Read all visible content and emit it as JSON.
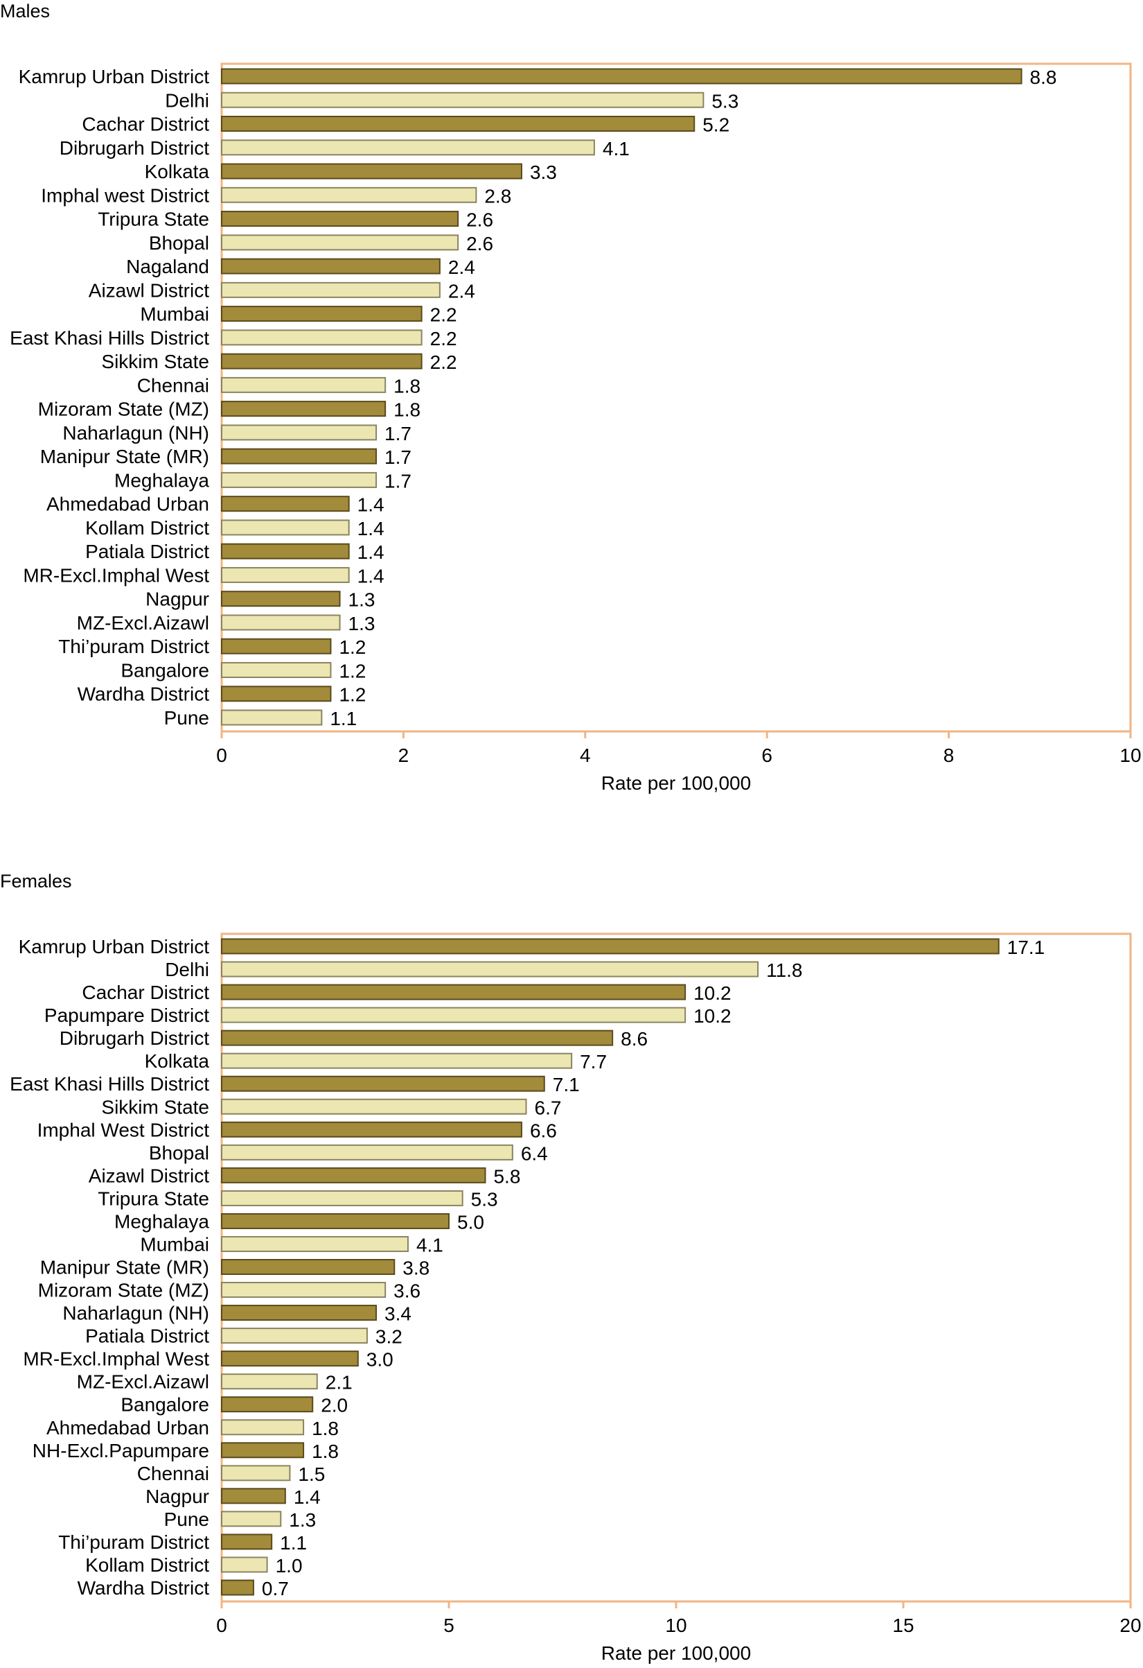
{
  "colors": {
    "dark_bar": "#a28b3a",
    "dark_bar_edge": "#5a4a1c",
    "light_bar": "#ece6b2",
    "light_bar_edge": "#8a8460",
    "frame": "#f2b482",
    "axis": "#f2b482"
  },
  "chart_data": [
    {
      "type": "bar",
      "orientation": "horizontal",
      "title": "Males",
      "xlabel": "Rate per 100,000",
      "xlim": [
        0,
        10
      ],
      "xticks": [
        0,
        2,
        4,
        6,
        8,
        10
      ],
      "grid": false,
      "categories": [
        "Kamrup Urban District",
        "Delhi",
        "Cachar District",
        "Dibrugarh District",
        "Kolkata",
        "Imphal west District",
        "Tripura State",
        "Bhopal",
        "Nagaland",
        "Aizawl District",
        "Mumbai",
        "East Khasi Hills District",
        "Sikkim State",
        "Chennai",
        "Mizoram State (MZ)",
        "Naharlagun (NH)",
        "Manipur State (MR)",
        "Meghalaya",
        "Ahmedabad Urban",
        "Kollam District",
        "Patiala District",
        "MR-Excl.Imphal West",
        "Nagpur",
        "MZ-Excl.Aizawl",
        "Thi’puram District",
        "Bangalore",
        "Wardha District",
        "Pune"
      ],
      "values": [
        8.8,
        5.3,
        5.2,
        4.1,
        3.3,
        2.8,
        2.6,
        2.6,
        2.4,
        2.4,
        2.2,
        2.2,
        2.2,
        1.8,
        1.8,
        1.7,
        1.7,
        1.7,
        1.4,
        1.4,
        1.4,
        1.4,
        1.3,
        1.3,
        1.2,
        1.2,
        1.2,
        1.1
      ],
      "value_labels": [
        "8.8",
        "5.3",
        "5.2",
        "4.1",
        "3.3",
        "2.8",
        "2.6",
        "2.6",
        "2.4",
        "2.4",
        "2.2",
        "2.2",
        "2.2",
        "1.8",
        "1.8",
        "1.7",
        "1.7",
        "1.7",
        "1.4",
        "1.4",
        "1.4",
        "1.4",
        "1.3",
        "1.3",
        "1.2",
        "1.2",
        "1.2",
        "1.1"
      ]
    },
    {
      "type": "bar",
      "orientation": "horizontal",
      "title": "Females",
      "xlabel": "Rate per 100,000",
      "xlim": [
        0,
        20
      ],
      "xticks": [
        0,
        5,
        10,
        15,
        20
      ],
      "grid": false,
      "categories": [
        "Kamrup Urban District",
        "Delhi",
        "Cachar District",
        "Papumpare District",
        "Dibrugarh District",
        "Kolkata",
        "East Khasi Hills District",
        "Sikkim State",
        "Imphal West District",
        "Bhopal",
        "Aizawl District",
        "Tripura State",
        "Meghalaya",
        "Mumbai",
        "Manipur State (MR)",
        "Mizoram State (MZ)",
        "Naharlagun (NH)",
        "Patiala District",
        "MR-Excl.Imphal West",
        "MZ-Excl.Aizawl",
        "Bangalore",
        "Ahmedabad Urban",
        "NH-Excl.Papumpare",
        "Chennai",
        "Nagpur",
        "Pune",
        "Thi’puram District",
        "Kollam District",
        "Wardha District"
      ],
      "values": [
        17.1,
        11.8,
        10.2,
        10.2,
        8.6,
        7.7,
        7.1,
        6.7,
        6.6,
        6.4,
        5.8,
        5.3,
        5.0,
        4.1,
        3.8,
        3.6,
        3.4,
        3.2,
        3.0,
        2.1,
        2.0,
        1.8,
        1.8,
        1.5,
        1.4,
        1.3,
        1.1,
        1.0,
        0.7
      ],
      "value_labels": [
        "17.1",
        "11.8",
        "10.2",
        "10.2",
        "8.6",
        "7.7",
        "7.1",
        "6.7",
        "6.6",
        "6.4",
        "5.8",
        "5.3",
        "5.0",
        "4.1",
        "3.8",
        "3.6",
        "3.4",
        "3.2",
        "3.0",
        "2.1",
        "2.0",
        "1.8",
        "1.8",
        "1.5",
        "1.4",
        "1.3",
        "1.1",
        "1.0",
        "0.7"
      ]
    }
  ]
}
